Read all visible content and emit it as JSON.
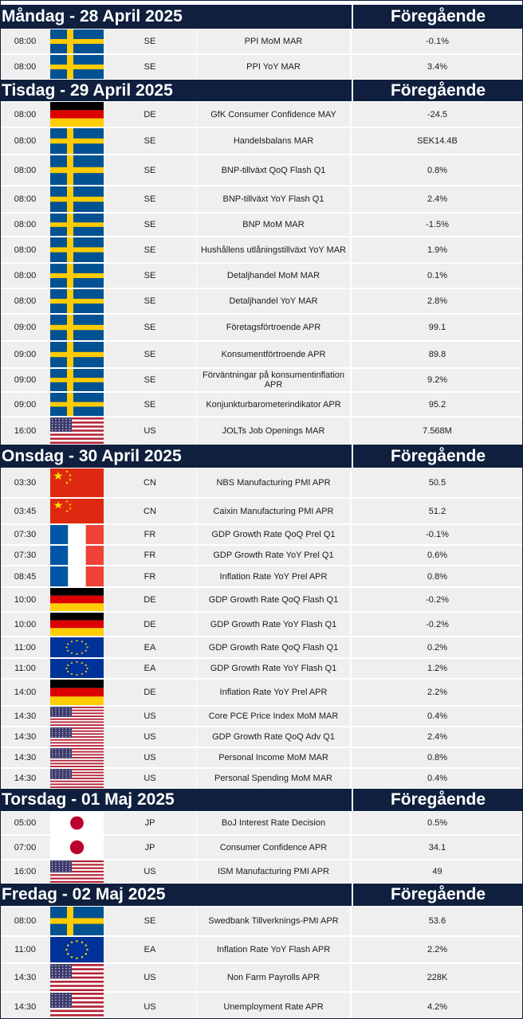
{
  "header": {
    "previous_label": "Föregående"
  },
  "days": [
    {
      "title": "Måndag - 28 April 2025",
      "events": [
        {
          "time": "08:00",
          "country": "SE",
          "flag": "sweden-flag-icon",
          "event": "PPI MoM MAR",
          "previous": "-0.1%"
        },
        {
          "time": "08:00",
          "country": "SE",
          "flag": "sweden-flag-icon",
          "event": "PPI YoY MAR",
          "previous": "3.4%"
        }
      ]
    },
    {
      "title": "Tisdag - 29 April 2025",
      "events": [
        {
          "time": "08:00",
          "country": "DE",
          "flag": "germany-flag-icon",
          "event": "GfK Consumer Confidence MAY",
          "previous": "-24.5"
        },
        {
          "time": "08:00",
          "country": "SE",
          "flag": "sweden-flag-icon",
          "event": "Handelsbalans MAR",
          "previous": "SEK14.4B"
        },
        {
          "time": "08:00",
          "country": "SE",
          "flag": "sweden-flag-icon",
          "event": "BNP-tillväxt QoQ Flash Q1",
          "previous": "0.8%"
        },
        {
          "time": "08:00",
          "country": "SE",
          "flag": "sweden-flag-icon",
          "event": "BNP-tillväxt YoY Flash Q1",
          "previous": "2.4%"
        },
        {
          "time": "08:00",
          "country": "SE",
          "flag": "sweden-flag-icon",
          "event": "BNP MoM MAR",
          "previous": "-1.5%"
        },
        {
          "time": "08:00",
          "country": "SE",
          "flag": "sweden-flag-icon",
          "event": "Hushållens utlåningstillväxt YoY MAR",
          "previous": "1.9%"
        },
        {
          "time": "08:00",
          "country": "SE",
          "flag": "sweden-flag-icon",
          "event": "Detaljhandel MoM MAR",
          "previous": "0.1%"
        },
        {
          "time": "08:00",
          "country": "SE",
          "flag": "sweden-flag-icon",
          "event": "Detaljhandel YoY MAR",
          "previous": "2.8%"
        },
        {
          "time": "09:00",
          "country": "SE",
          "flag": "sweden-flag-icon",
          "event": "Företagsförtroende APR",
          "previous": "99.1"
        },
        {
          "time": "09:00",
          "country": "SE",
          "flag": "sweden-flag-icon",
          "event": "Konsumentförtroende APR",
          "previous": "89.8"
        },
        {
          "time": "09:00",
          "country": "SE",
          "flag": "sweden-flag-icon",
          "event": "Förväntningar på konsumentinflation APR",
          "previous": "9.2%"
        },
        {
          "time": "09:00",
          "country": "SE",
          "flag": "sweden-flag-icon",
          "event": "Konjunkturbarometerindikator APR",
          "previous": "95.2"
        },
        {
          "time": "16:00",
          "country": "US",
          "flag": "usa-flag-icon",
          "event": "JOLTs Job Openings MAR",
          "previous": "7.568M"
        }
      ]
    },
    {
      "title": "Onsdag - 30 April 2025",
      "events": [
        {
          "time": "03:30",
          "country": "CN",
          "flag": "china-flag-icon",
          "event": "NBS Manufacturing PMI APR",
          "previous": "50.5"
        },
        {
          "time": "03:45",
          "country": "CN",
          "flag": "china-flag-icon",
          "event": "Caixin Manufacturing PMI APR",
          "previous": "51.2"
        },
        {
          "time": "07:30",
          "country": "FR",
          "flag": "france-flag-icon",
          "event": "GDP Growth Rate QoQ Prel Q1",
          "previous": "-0.1%"
        },
        {
          "time": "07:30",
          "country": "FR",
          "flag": "france-flag-icon",
          "event": "GDP Growth Rate YoY Prel Q1",
          "previous": "0.6%"
        },
        {
          "time": "08:45",
          "country": "FR",
          "flag": "france-flag-icon",
          "event": "Inflation Rate YoY Prel APR",
          "previous": "0.8%"
        },
        {
          "time": "10:00",
          "country": "DE",
          "flag": "germany-flag-icon",
          "event": "GDP Growth Rate QoQ Flash Q1",
          "previous": "-0.2%"
        },
        {
          "time": "10:00",
          "country": "DE",
          "flag": "germany-flag-icon",
          "event": "GDP Growth Rate YoY Flash Q1",
          "previous": "-0.2%"
        },
        {
          "time": "11:00",
          "country": "EA",
          "flag": "eu-flag-icon",
          "event": "GDP Growth Rate QoQ Flash Q1",
          "previous": "0.2%"
        },
        {
          "time": "11:00",
          "country": "EA",
          "flag": "eu-flag-icon",
          "event": "GDP Growth Rate YoY Flash Q1",
          "previous": "1.2%"
        },
        {
          "time": "14:00",
          "country": "DE",
          "flag": "germany-flag-icon",
          "event": "Inflation Rate YoY Prel APR",
          "previous": "2.2%"
        },
        {
          "time": "14:30",
          "country": "US",
          "flag": "usa-flag-icon",
          "event": "Core PCE Price Index MoM MAR",
          "previous": "0.4%"
        },
        {
          "time": "14:30",
          "country": "US",
          "flag": "usa-flag-icon",
          "event": "GDP Growth Rate QoQ Adv Q1",
          "previous": "2.4%"
        },
        {
          "time": "14:30",
          "country": "US",
          "flag": "usa-flag-icon",
          "event": "Personal Income MoM MAR",
          "previous": "0.8%"
        },
        {
          "time": "14:30",
          "country": "US",
          "flag": "usa-flag-icon",
          "event": "Personal Spending MoM MAR",
          "previous": "0.4%"
        }
      ]
    },
    {
      "title": "Torsdag - 01 Maj 2025",
      "events": [
        {
          "time": "05:00",
          "country": "JP",
          "flag": "japan-flag-icon",
          "event": "BoJ Interest Rate Decision",
          "previous": "0.5%"
        },
        {
          "time": "07:00",
          "country": "JP",
          "flag": "japan-flag-icon",
          "event": "Consumer Confidence APR",
          "previous": "34.1"
        },
        {
          "time": "16:00",
          "country": "US",
          "flag": "usa-flag-icon",
          "event": "ISM Manufacturing PMI APR",
          "previous": "49"
        }
      ]
    },
    {
      "title": "Fredag - 02 Maj 2025",
      "events": [
        {
          "time": "08:00",
          "country": "SE",
          "flag": "sweden-flag-icon",
          "event": "Swedbank Tillverknings-PMI APR",
          "previous": "53.6"
        },
        {
          "time": "11:00",
          "country": "EA",
          "flag": "eu-flag-icon",
          "event": "Inflation Rate YoY Flash APR",
          "previous": "2.2%"
        },
        {
          "time": "14:30",
          "country": "US",
          "flag": "usa-flag-icon",
          "event": "Non Farm Payrolls APR",
          "previous": "228K"
        },
        {
          "time": "14:30",
          "country": "US",
          "flag": "usa-flag-icon",
          "event": "Unemployment Rate APR",
          "previous": "4.2%"
        }
      ]
    }
  ],
  "flag_colors": {
    "sweden": {
      "blue": "#005293",
      "yellow": "#fecb00"
    },
    "germany": {
      "black": "#000000",
      "red": "#dd0000",
      "gold": "#ffce00"
    },
    "usa": {
      "red": "#b22234",
      "white": "#ffffff",
      "blue": "#3c3b6e"
    },
    "china": {
      "red": "#de2910",
      "yellow": "#ffde00"
    },
    "france": {
      "blue": "#0055a4",
      "white": "#ffffff",
      "red": "#ef4135"
    },
    "eu": {
      "blue": "#003399",
      "yellow": "#ffcc00"
    },
    "japan": {
      "white": "#ffffff",
      "red": "#bc002d"
    }
  }
}
